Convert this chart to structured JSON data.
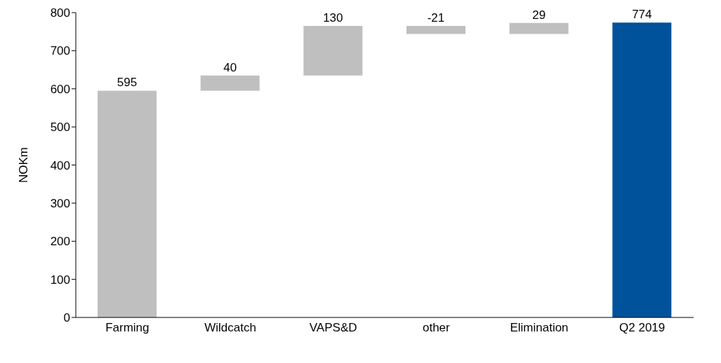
{
  "chart_data": {
    "type": "bar",
    "ylabel": "NOKm",
    "categories": [
      "Farming",
      "Wildcatch",
      "VAPS&D",
      "other",
      "Elimination",
      "Q2 2019"
    ],
    "values": [
      595,
      40,
      130,
      -21,
      29,
      774
    ],
    "base": [
      0,
      595,
      635,
      765,
      744,
      0
    ],
    "colors": [
      "#bfbfbf",
      "#bfbfbf",
      "#bfbfbf",
      "#bfbfbf",
      "#bfbfbf",
      "#00529b"
    ],
    "ylim": [
      0,
      800
    ],
    "yticks": [
      0,
      100,
      200,
      300,
      400,
      500,
      600,
      700,
      800
    ],
    "data_labels": true,
    "grid": false,
    "legend": false
  }
}
